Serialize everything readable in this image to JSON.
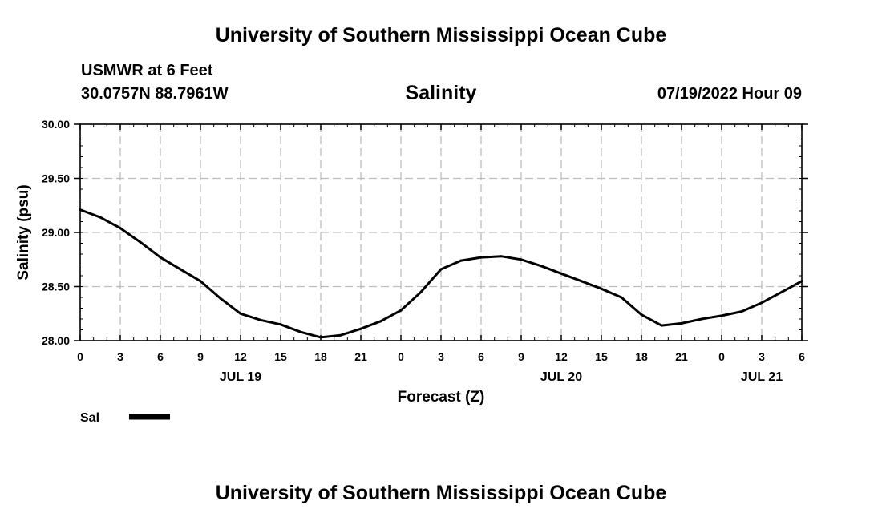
{
  "header": {
    "title": "University of Southern Mississippi Ocean Cube",
    "station": "USMWR at 6 Feet",
    "coords": "30.0757N  88.7961W",
    "variable": "Salinity",
    "datetime": "07/19/2022 Hour 09"
  },
  "footer": {
    "title": "University of Southern Mississippi Ocean Cube"
  },
  "chart_data": {
    "type": "line",
    "title": "Salinity",
    "xlabel": "Forecast (Z)",
    "ylabel": "Salinity (psu)",
    "x_unit": "forecast hours from 00Z JUL 19",
    "xlim": [
      0,
      54
    ],
    "ylim": [
      28.0,
      30.0
    ],
    "y_ticks": [
      "28.00",
      "28.50",
      "29.00",
      "29.50",
      "30.00"
    ],
    "y_tick_values": [
      28.0,
      28.5,
      29.0,
      29.5,
      30.0
    ],
    "x_ticks": [
      "0",
      "3",
      "6",
      "9",
      "12",
      "15",
      "18",
      "21",
      "0",
      "3",
      "6",
      "9",
      "12",
      "15",
      "18",
      "21",
      "0",
      "3",
      "6"
    ],
    "day_labels": [
      {
        "label": "JUL 19",
        "hour": 12
      },
      {
        "label": "JUL 20",
        "hour": 36
      },
      {
        "label": "JUL 21",
        "hour": 51
      }
    ],
    "grid": true,
    "legend_position": "bottom-left",
    "series": [
      {
        "name": "Sal",
        "color": "#000000",
        "x": [
          0,
          1.5,
          3,
          4.5,
          6,
          7.5,
          9,
          10.5,
          12,
          13.5,
          15,
          16.5,
          18,
          19.5,
          21,
          22.5,
          24,
          25.5,
          27,
          28.5,
          30,
          31.5,
          33,
          34.5,
          36,
          37.5,
          39,
          40.5,
          42,
          43.5,
          45,
          46.5,
          48,
          49.5,
          51,
          52.5,
          54
        ],
        "values": [
          29.21,
          29.14,
          29.04,
          28.91,
          28.77,
          28.66,
          28.55,
          28.39,
          28.25,
          28.19,
          28.15,
          28.08,
          28.03,
          28.05,
          28.11,
          28.18,
          28.28,
          28.45,
          28.66,
          28.74,
          28.77,
          28.78,
          28.75,
          28.69,
          28.62,
          28.55,
          28.48,
          28.4,
          28.24,
          28.14,
          28.16,
          28.2,
          28.23,
          28.27,
          28.35,
          28.45,
          28.55
        ]
      }
    ]
  }
}
